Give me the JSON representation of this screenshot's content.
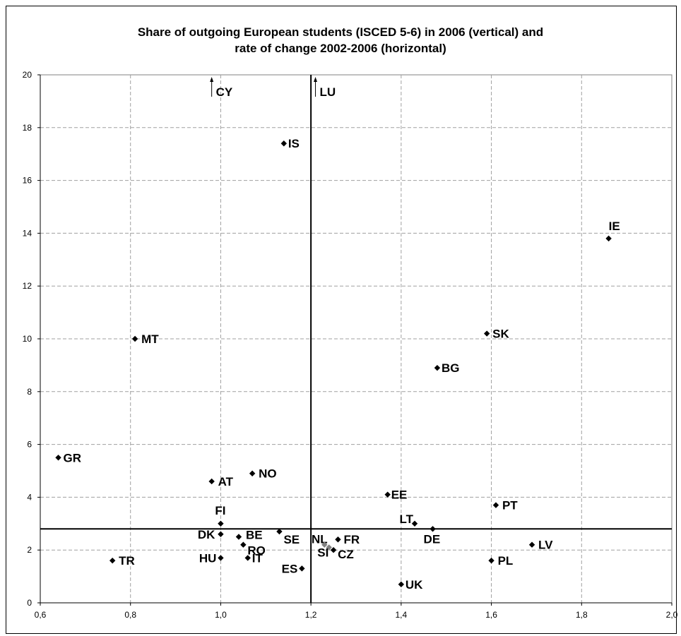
{
  "chart_data": {
    "type": "scatter",
    "title_line1": "Share of outgoing European students (ISCED 5-6) in 2006 (vertical) and",
    "title_line2": "rate of change 2002-2006 (horizontal)",
    "xlim": [
      0.6,
      2.0
    ],
    "ylim": [
      0,
      20
    ],
    "x_ticks": [
      "0,6",
      "0,8",
      "1,0",
      "1,2",
      "1,4",
      "1,6",
      "1,8",
      "2,0"
    ],
    "y_ticks": [
      "0",
      "2",
      "4",
      "6",
      "8",
      "10",
      "12",
      "14",
      "16",
      "18",
      "20"
    ],
    "grid": true,
    "reference_lines": {
      "x": 1.2,
      "y": 2.8
    },
    "points": [
      {
        "label": "GR",
        "x": 0.64,
        "y": 5.5
      },
      {
        "label": "MT",
        "x": 0.81,
        "y": 10.0
      },
      {
        "label": "TR",
        "x": 0.76,
        "y": 1.6
      },
      {
        "label": "AT",
        "x": 0.98,
        "y": 4.6
      },
      {
        "label": "NO",
        "x": 1.07,
        "y": 4.9
      },
      {
        "label": "FI",
        "x": 1.0,
        "y": 3.0
      },
      {
        "label": "DK",
        "x": 1.0,
        "y": 2.6
      },
      {
        "label": "BE",
        "x": 1.04,
        "y": 2.5
      },
      {
        "label": "RO",
        "x": 1.05,
        "y": 2.2
      },
      {
        "label": "HU",
        "x": 1.0,
        "y": 1.7
      },
      {
        "label": "IT",
        "x": 1.06,
        "y": 1.7
      },
      {
        "label": "SE",
        "x": 1.13,
        "y": 2.7
      },
      {
        "label": "ES",
        "x": 1.18,
        "y": 1.3
      },
      {
        "label": "IS",
        "x": 1.14,
        "y": 17.4
      },
      {
        "label": "NL",
        "x": 1.24,
        "y": 2.1
      },
      {
        "label": "SI",
        "x": 1.23,
        "y": 2.2
      },
      {
        "label": "FR",
        "x": 1.26,
        "y": 2.4
      },
      {
        "label": "CZ",
        "x": 1.25,
        "y": 2.0
      },
      {
        "label": "EE",
        "x": 1.37,
        "y": 4.1
      },
      {
        "label": "LT",
        "x": 1.43,
        "y": 3.0
      },
      {
        "label": "DE",
        "x": 1.47,
        "y": 2.8
      },
      {
        "label": "UK",
        "x": 1.4,
        "y": 0.7
      },
      {
        "label": "BG",
        "x": 1.48,
        "y": 8.9
      },
      {
        "label": "SK",
        "x": 1.59,
        "y": 10.2
      },
      {
        "label": "PT",
        "x": 1.61,
        "y": 3.7
      },
      {
        "label": "PL",
        "x": 1.6,
        "y": 1.6
      },
      {
        "label": "LV",
        "x": 1.69,
        "y": 2.2
      },
      {
        "label": "IE",
        "x": 1.86,
        "y": 13.8
      }
    ],
    "offscale_points": [
      {
        "label": "CY",
        "x": 0.98
      },
      {
        "label": "LU",
        "x": 1.21
      }
    ]
  }
}
